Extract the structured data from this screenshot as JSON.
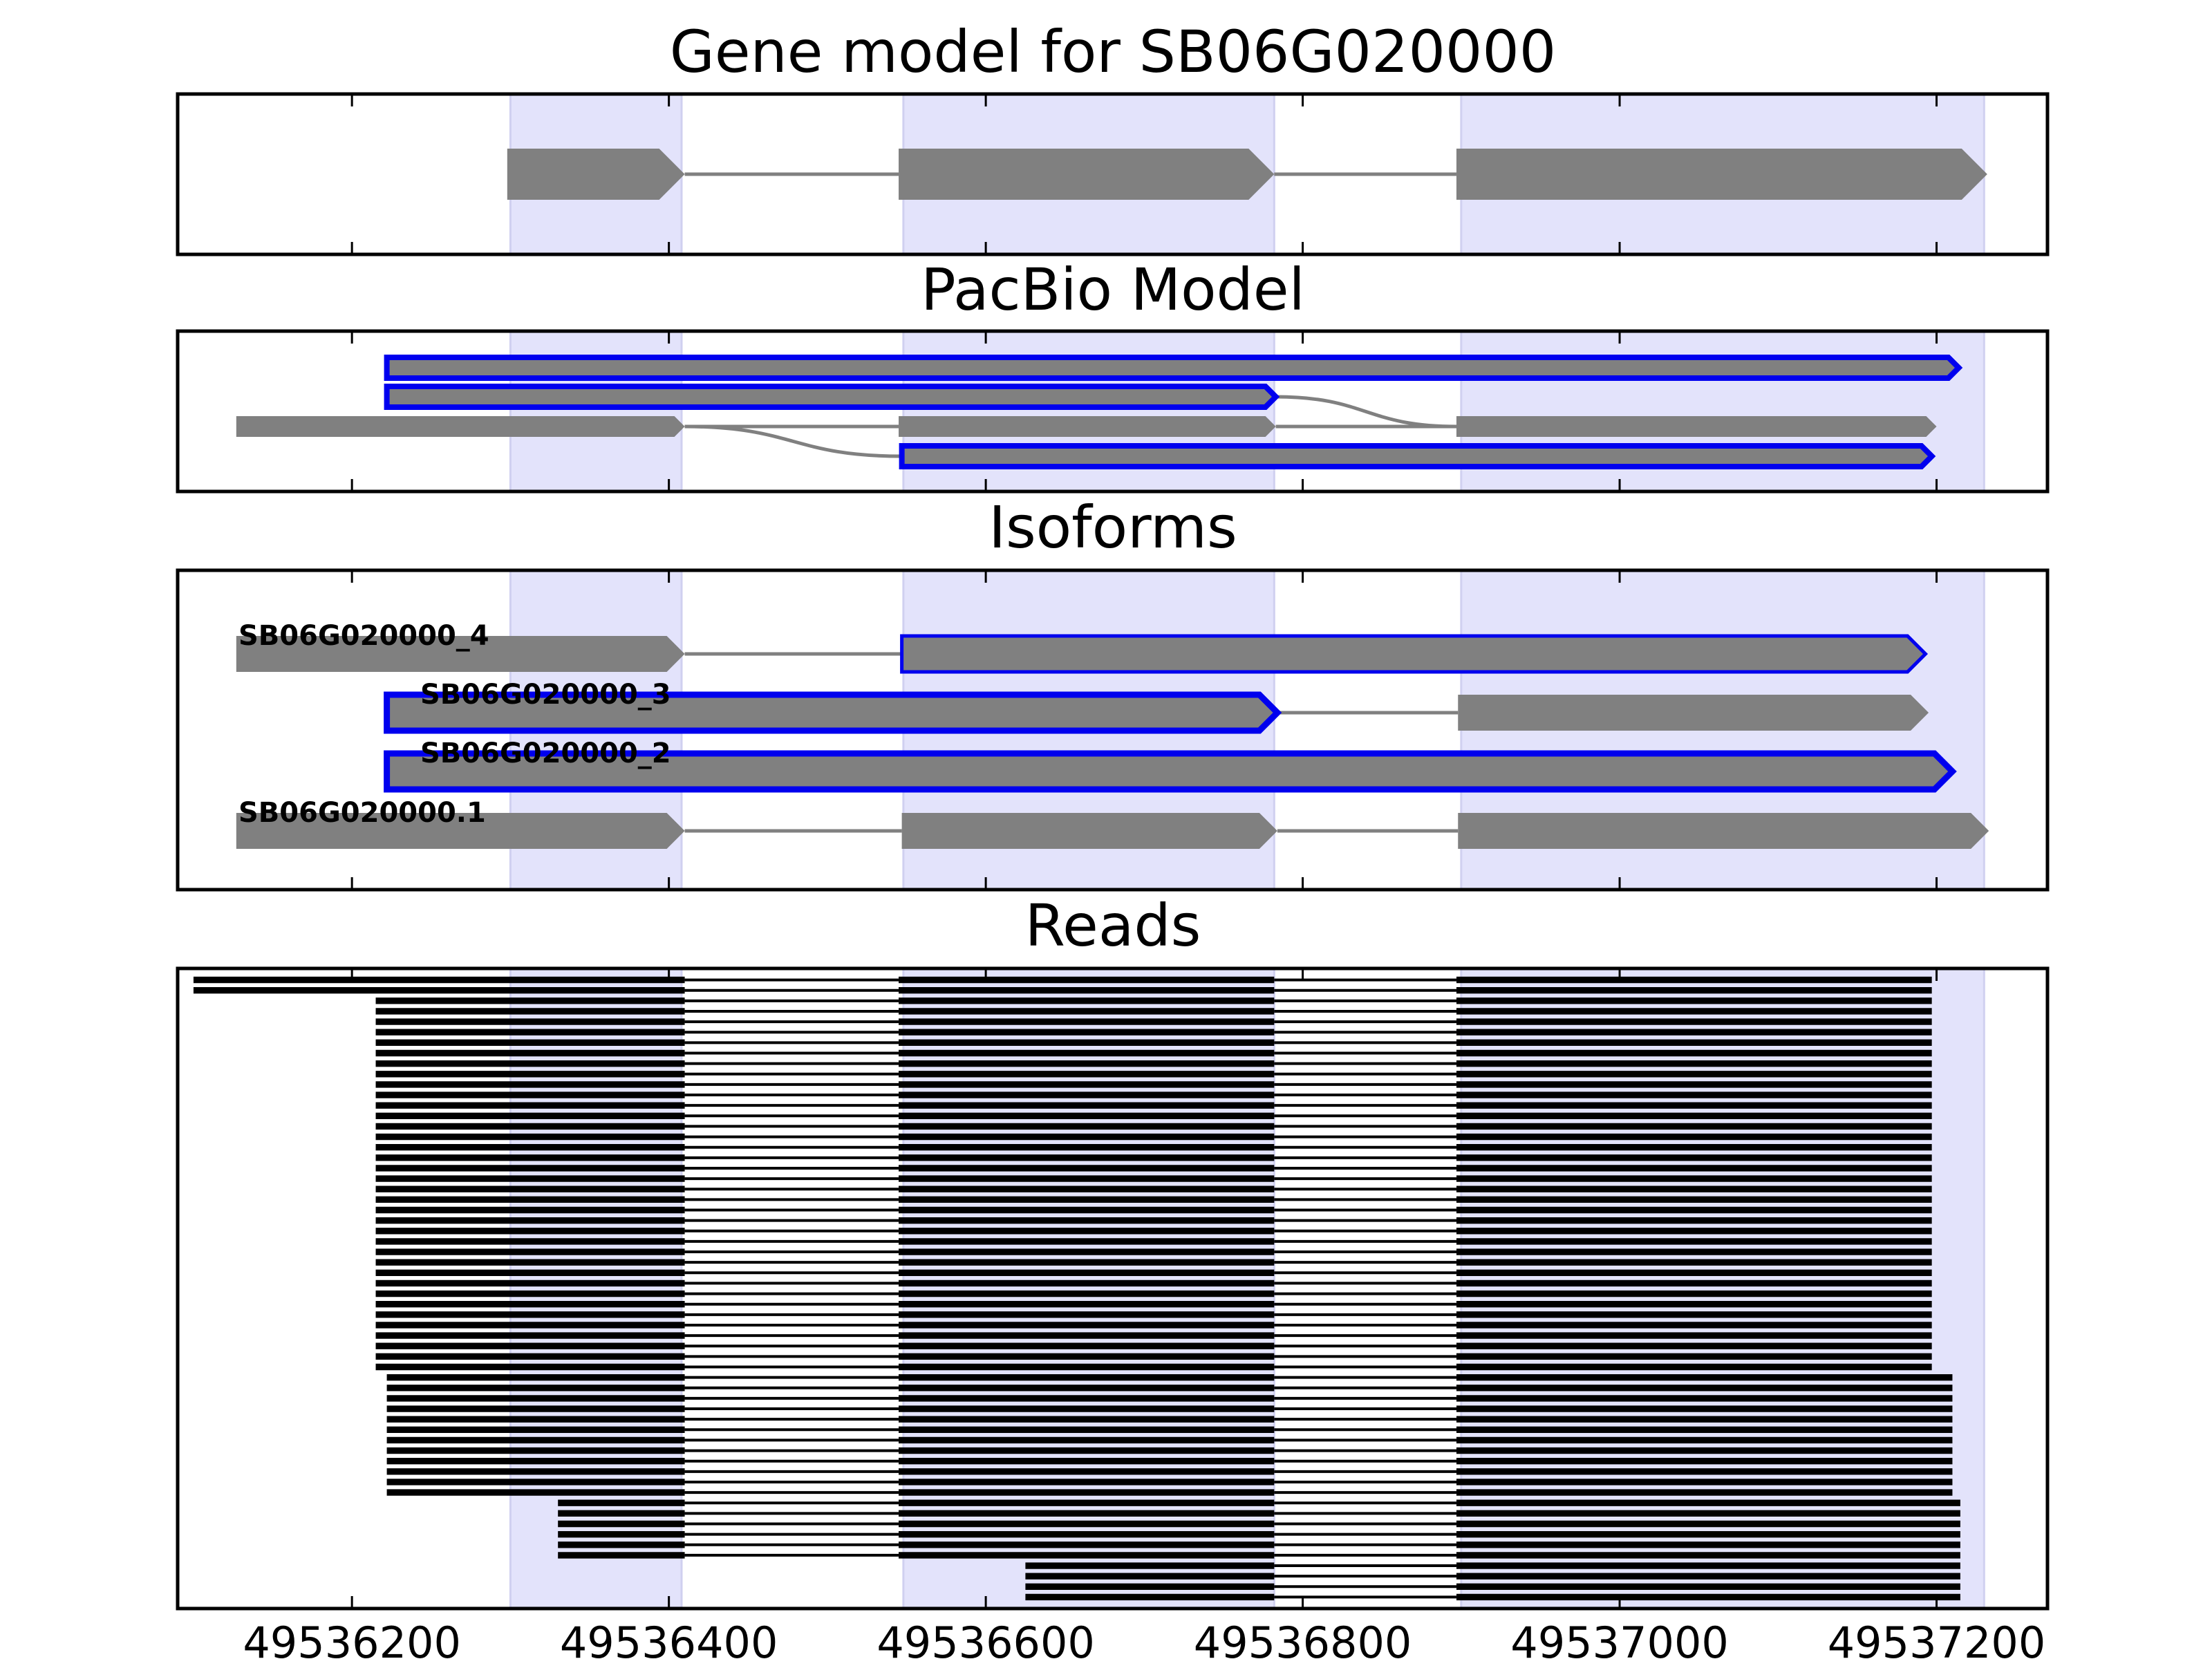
{
  "titles": {
    "gene_model": "Gene model for SB06G020000",
    "pacbio": "PacBio Model",
    "isoforms": "Isoforms",
    "reads": "Reads"
  },
  "colors": {
    "highlight": "#e3e3fb",
    "feature": "#808080",
    "outline": "#0000ee",
    "intron": "#808080",
    "read": "#000000"
  },
  "axis": {
    "xlim": [
      49536090,
      49537270
    ],
    "ticks": [
      49536200,
      49536400,
      49536600,
      49536800,
      49537000,
      49537200
    ],
    "tick_labels": [
      "49536200",
      "49536400",
      "49536600",
      "49536800",
      "49537000",
      "49537200"
    ]
  },
  "highlight_regions": [
    [
      49536300,
      49536408
    ],
    [
      49536548,
      49536782
    ],
    [
      49536900,
      49537230
    ]
  ],
  "gene_model": {
    "exons": [
      [
        49536298,
        49536410
      ],
      [
        49536545,
        49536782
      ],
      [
        49536897,
        49537232
      ]
    ]
  },
  "pacbio_model": {
    "rows": [
      {
        "exons": [
          [
            49536222,
            49537214
          ]
        ],
        "outlined": true
      },
      {
        "exons": [
          [
            49536222,
            49536783
          ]
        ],
        "outlined": true
      },
      {
        "exons": [
          [
            49536127,
            49536410
          ],
          [
            49536545,
            49536783
          ],
          [
            49536897,
            49537200
          ]
        ],
        "outlined": false
      },
      {
        "exons": [
          [
            49536547,
            49537197
          ]
        ],
        "outlined": true
      }
    ],
    "curves": [
      {
        "from_row": 1,
        "to_row": 2,
        "x1": 49536783,
        "x2": 49536897
      },
      {
        "from_row": 2,
        "to_row": 3,
        "x1": 49536410,
        "x2": 49536547
      }
    ]
  },
  "isoforms": {
    "rows": [
      {
        "label": "SB06G020000_4",
        "exons": [
          [
            49536127,
            49536410
          ],
          [
            49536547,
            49537193
          ]
        ],
        "outlined": [
          false,
          true
        ]
      },
      {
        "label": "SB06G020000_3",
        "exons": [
          [
            49536222,
            49536784
          ],
          [
            49536898,
            49537195
          ]
        ],
        "outlined": [
          true,
          false
        ]
      },
      {
        "label": "SB06G020000_2",
        "exons": [
          [
            49536222,
            49537210
          ]
        ],
        "outlined": [
          true
        ]
      },
      {
        "label": "SB06G020000.1",
        "exons": [
          [
            49536127,
            49536410
          ],
          [
            49536547,
            49536784
          ],
          [
            49536898,
            49537233
          ]
        ],
        "outlined": [
          false,
          false,
          false
        ]
      }
    ]
  },
  "reads": {
    "count": 60,
    "bottom_count": 4,
    "groups": [
      {
        "count": 2,
        "start": 49536100,
        "end": 49537197
      },
      {
        "count": 36,
        "start": 49536215,
        "end": 49537197
      },
      {
        "count": 12,
        "start": 49536222,
        "end": 49537210
      },
      {
        "count": 10,
        "start": 49536330,
        "end": 49537215
      }
    ]
  }
}
